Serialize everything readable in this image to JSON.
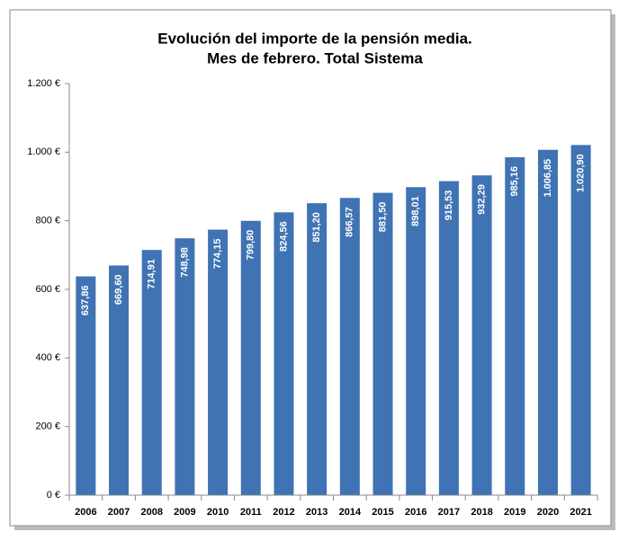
{
  "chart_data": {
    "type": "bar",
    "title": "Evolución del importe de la pensión media.",
    "subtitle": "Mes de febrero. Total Sistema",
    "categories": [
      "2006",
      "2007",
      "2008",
      "2009",
      "2010",
      "2011",
      "2012",
      "2013",
      "2014",
      "2015",
      "2016",
      "2017",
      "2018",
      "2019",
      "2020",
      "2021"
    ],
    "values": [
      637.86,
      669.6,
      714.91,
      748.98,
      774.15,
      799.8,
      824.56,
      851.2,
      866.57,
      881.5,
      898.01,
      915.53,
      932.29,
      985.16,
      1006.85,
      1020.9
    ],
    "value_labels": [
      "637,86",
      "669,60",
      "714,91",
      "748,98",
      "774,15",
      "799,80",
      "824,56",
      "851,20",
      "866,57",
      "881,50",
      "898,01",
      "915,53",
      "932,29",
      "985,16",
      "1.006,85",
      "1.020,90"
    ],
    "color": "#3f73b3",
    "ylim": [
      0,
      1200
    ],
    "yticks": [
      {
        "value": 0,
        "label": "0 €"
      },
      {
        "value": 200,
        "label": "200 €"
      },
      {
        "value": 400,
        "label": "400 €"
      },
      {
        "value": 600,
        "label": "600 €"
      },
      {
        "value": 800,
        "label": "800 €"
      },
      {
        "value": 1000,
        "label": "1.000 €"
      },
      {
        "value": 1200,
        "label": "1.200 €"
      }
    ],
    "grid": false
  }
}
